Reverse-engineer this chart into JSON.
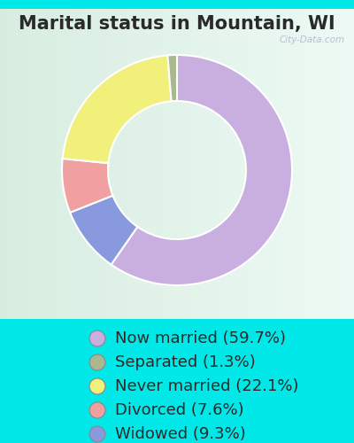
{
  "title": "Marital status in Mountain, WI",
  "slices": [
    59.7,
    9.3,
    7.6,
    22.1,
    1.3
  ],
  "labels": [
    "Now married (59.7%)",
    "Separated (1.3%)",
    "Never married (22.1%)",
    "Divorced (7.6%)",
    "Widowed (9.3%)"
  ],
  "legend_order": [
    0,
    4,
    3,
    2,
    1
  ],
  "colors": [
    "#c9aee0",
    "#8899dd",
    "#f0a0a0",
    "#f0f07a",
    "#a8b890"
  ],
  "legend_colors": [
    "#c9aee0",
    "#a8b890",
    "#f0f07a",
    "#f0a0a0",
    "#8899dd"
  ],
  "background_color": "#00e8e8",
  "chart_bg_top_left": "#d8f0e0",
  "chart_bg_bottom_right": "#e8f8e0",
  "title_fontsize": 15,
  "legend_fontsize": 13,
  "watermark": "City-Data.com"
}
